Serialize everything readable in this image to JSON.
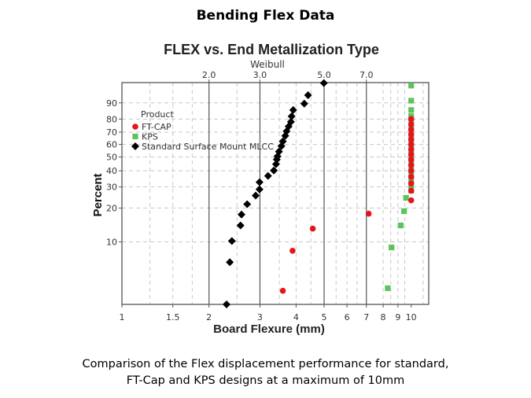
{
  "slide_title": "Bending Flex Data",
  "caption": {
    "line1": "Comparison of the Flex displacement performance for standard,",
    "line2": "FT-Cap and KPS designs at a maximum of 10mm"
  },
  "chart_data": {
    "type": "scatter",
    "title": "FLEX vs. End Metallization Type",
    "subtitle": "Weibull",
    "xlabel": "Board Flexure (mm)",
    "ylabel": "Percent",
    "x_scale": "log",
    "y_scale": "weibull",
    "xlim": [
      1,
      11.5
    ],
    "ylim": [
      2.6,
      97.3
    ],
    "x_ticks": [
      1,
      1.5,
      2,
      3,
      4,
      5,
      6,
      7,
      8,
      9,
      10
    ],
    "x_tick_labels": [
      "1",
      "1.5",
      "2",
      "3",
      "4",
      "5",
      "6",
      "7",
      "8",
      "9",
      "10"
    ],
    "top_ticks": [
      2,
      3,
      5,
      7
    ],
    "top_tick_labels": [
      "2.0",
      "3.0",
      "5.0",
      "7.0"
    ],
    "y_ticks": [
      10,
      20,
      30,
      40,
      50,
      60,
      70,
      80,
      90
    ],
    "y_tick_labels": [
      "10",
      "20",
      "30",
      "40",
      "50",
      "60",
      "70",
      "80",
      "90"
    ],
    "grid": true,
    "legend": {
      "title": "Product",
      "placement": "top-left"
    },
    "series": [
      {
        "name": "FT-CAP",
        "color": "#e8141b",
        "marker": "circle",
        "points": [
          [
            3.6,
            3.5
          ],
          [
            3.89,
            8.3
          ],
          [
            4.57,
            13.2
          ],
          [
            7.13,
            17.9
          ],
          [
            10,
            23.3
          ],
          [
            10,
            28
          ],
          [
            10,
            32
          ],
          [
            10,
            36
          ],
          [
            10,
            40
          ],
          [
            10,
            44
          ],
          [
            10,
            48
          ],
          [
            10,
            52
          ],
          [
            10,
            56
          ],
          [
            10,
            60
          ],
          [
            10,
            64
          ],
          [
            10,
            68
          ],
          [
            10,
            72
          ],
          [
            10,
            76
          ],
          [
            10,
            80
          ]
        ]
      },
      {
        "name": "KPS",
        "color": "#5cc45c",
        "marker": "square",
        "points": [
          [
            8.3,
            3.7
          ],
          [
            8.55,
            8.9
          ],
          [
            9.2,
            14.1
          ],
          [
            9.45,
            18.8
          ],
          [
            9.6,
            24.4
          ],
          [
            10,
            28
          ],
          [
            10,
            31
          ],
          [
            10,
            34
          ],
          [
            10,
            37
          ],
          [
            10,
            40
          ],
          [
            10,
            43
          ],
          [
            10,
            46
          ],
          [
            10,
            49
          ],
          [
            10,
            52
          ],
          [
            10,
            55
          ],
          [
            10,
            58
          ],
          [
            10,
            61
          ],
          [
            10,
            64
          ],
          [
            10,
            67
          ],
          [
            10,
            70
          ],
          [
            10,
            73
          ],
          [
            10,
            76
          ],
          [
            10,
            79
          ],
          [
            10,
            82
          ],
          [
            10,
            86
          ],
          [
            10,
            91.1
          ],
          [
            10,
            96.6
          ]
        ]
      },
      {
        "name": "Standard Surface Mount MLCC",
        "color": "#000000",
        "marker": "diamond",
        "points": [
          [
            2.3,
            2.6
          ],
          [
            2.36,
            6.5
          ],
          [
            2.4,
            10.2
          ],
          [
            2.57,
            14.1
          ],
          [
            2.59,
            17.6
          ],
          [
            2.71,
            21.6
          ],
          [
            2.9,
            25.5
          ],
          [
            2.99,
            28.7
          ],
          [
            2.99,
            32.7
          ],
          [
            3.2,
            36.6
          ],
          [
            3.35,
            40.2
          ],
          [
            3.41,
            44.6
          ],
          [
            3.43,
            48.1
          ],
          [
            3.45,
            50.5
          ],
          [
            3.49,
            54.2
          ],
          [
            3.56,
            58.6
          ],
          [
            3.6,
            62.5
          ],
          [
            3.67,
            67.0
          ],
          [
            3.71,
            70.7
          ],
          [
            3.77,
            74.5
          ],
          [
            3.84,
            78.0
          ],
          [
            3.86,
            81.9
          ],
          [
            3.91,
            86.0
          ],
          [
            4.27,
            89.6
          ],
          [
            4.4,
            93.5
          ],
          [
            4.99,
            97.2
          ]
        ]
      }
    ]
  }
}
